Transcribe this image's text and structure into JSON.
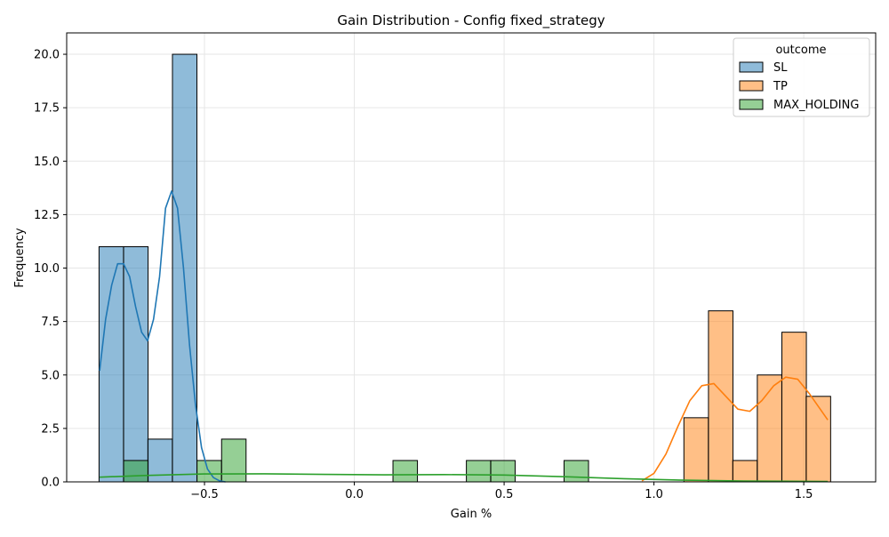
{
  "chart_data": {
    "type": "bar",
    "title": "Gain Distribution - Config fixed_strategy",
    "xlabel": "Gain %",
    "ylabel": "Frequency",
    "xlim": [
      -0.96,
      1.74
    ],
    "ylim": [
      0,
      21
    ],
    "xticks": [
      -0.5,
      0.0,
      0.5,
      1.0,
      1.5
    ],
    "xtick_labels": [
      "−0.5",
      "0.0",
      "0.5",
      "1.0",
      "1.5"
    ],
    "yticks": [
      0,
      2.5,
      5,
      7.5,
      10,
      12.5,
      15,
      17.5,
      20
    ],
    "ytick_labels": [
      "0.0",
      "2.5",
      "5.0",
      "7.5",
      "10.0",
      "12.5",
      "15.0",
      "17.5",
      "20.0"
    ],
    "grid": true,
    "legend": {
      "title": "outcome",
      "placement": "top-right"
    },
    "bin_width": 0.0817,
    "series": [
      {
        "name": "SL",
        "color": "#1f77b4",
        "bins": [
          [
            -0.852,
            11
          ],
          [
            -0.77,
            11
          ],
          [
            -0.689,
            2
          ],
          [
            -0.607,
            20
          ]
        ],
        "kde_x": [
          -0.85,
          -0.83,
          -0.81,
          -0.79,
          -0.77,
          -0.75,
          -0.73,
          -0.71,
          -0.69,
          -0.67,
          -0.65,
          -0.63,
          -0.61,
          -0.59,
          -0.57,
          -0.55,
          -0.53,
          -0.51,
          -0.49,
          -0.47,
          -0.45,
          -0.43
        ],
        "kde_y": [
          5.2,
          7.6,
          9.2,
          10.2,
          10.2,
          9.6,
          8.2,
          7.0,
          6.6,
          7.6,
          9.6,
          12.8,
          13.6,
          12.8,
          10.0,
          6.4,
          3.6,
          1.6,
          0.6,
          0.2,
          0.05,
          0.0
        ]
      },
      {
        "name": "TP",
        "color": "#ff7f0e",
        "bins": [
          [
            1.1,
            3
          ],
          [
            1.182,
            8
          ],
          [
            1.263,
            1
          ],
          [
            1.345,
            5
          ],
          [
            1.427,
            7
          ],
          [
            1.508,
            4
          ]
        ],
        "kde_x": [
          0.96,
          1.0,
          1.04,
          1.08,
          1.12,
          1.16,
          1.2,
          1.24,
          1.28,
          1.32,
          1.36,
          1.4,
          1.44,
          1.48,
          1.52,
          1.56,
          1.58
        ],
        "kde_y": [
          0.05,
          0.4,
          1.3,
          2.6,
          3.8,
          4.5,
          4.6,
          4.0,
          3.4,
          3.3,
          3.8,
          4.5,
          4.9,
          4.8,
          4.1,
          3.3,
          2.9
        ]
      },
      {
        "name": "MAX_HOLDING",
        "color": "#2ca02c",
        "bins": [
          [
            -0.77,
            1
          ],
          [
            -0.525,
            1
          ],
          [
            -0.443,
            2
          ],
          [
            0.129,
            1
          ],
          [
            0.374,
            1
          ],
          [
            0.455,
            1
          ],
          [
            0.7,
            1
          ]
        ],
        "kde_x": [
          -0.85,
          -0.7,
          -0.5,
          -0.3,
          -0.1,
          0.1,
          0.3,
          0.5,
          0.7,
          0.9,
          1.1,
          1.3,
          1.58
        ],
        "kde_y": [
          0.22,
          0.3,
          0.37,
          0.38,
          0.35,
          0.33,
          0.34,
          0.32,
          0.24,
          0.15,
          0.08,
          0.04,
          0.02
        ]
      }
    ]
  }
}
